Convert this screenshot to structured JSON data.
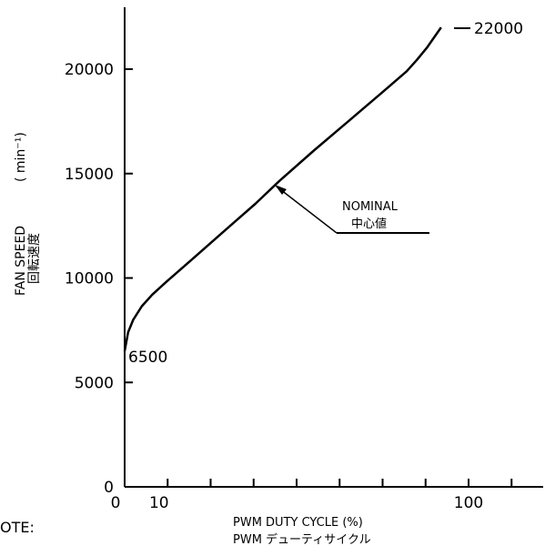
{
  "chart_data": {
    "type": "line",
    "xlabel": "PWM DUTY CYCLE (%)",
    "xlabel_secondary": "PWM デューティサイクル",
    "ylabel": "FAN SPEED",
    "ylabel_secondary": "回転速度",
    "ylabel_unit": "( min⁻¹)",
    "xlim": [
      0,
      125
    ],
    "ylim": [
      0,
      23000
    ],
    "x_ticks": [
      0,
      10,
      100
    ],
    "x_minor_ticks": [
      0,
      12.5,
      25,
      37.5,
      50,
      62.5,
      75,
      87.5,
      100,
      112.5
    ],
    "y_ticks": [
      0,
      5000,
      10000,
      15000,
      20000
    ],
    "grid": false,
    "series": [
      {
        "name": "NOMINAL",
        "x": [
          0,
          1,
          2.5,
          5,
          8,
          12,
          20,
          30,
          38,
          45,
          55,
          65,
          75,
          82,
          85,
          88,
          92
        ],
        "y": [
          6500,
          7400,
          8000,
          8650,
          9200,
          9800,
          10950,
          12400,
          13550,
          14650,
          16100,
          17500,
          18900,
          19900,
          20450,
          21050,
          22000
        ]
      }
    ],
    "annotations": {
      "start_label": "6500",
      "end_label": "22000",
      "nominal_label": "NOMINAL",
      "nominal_label_secondary": "中心値"
    }
  },
  "note_label": "OTE:"
}
